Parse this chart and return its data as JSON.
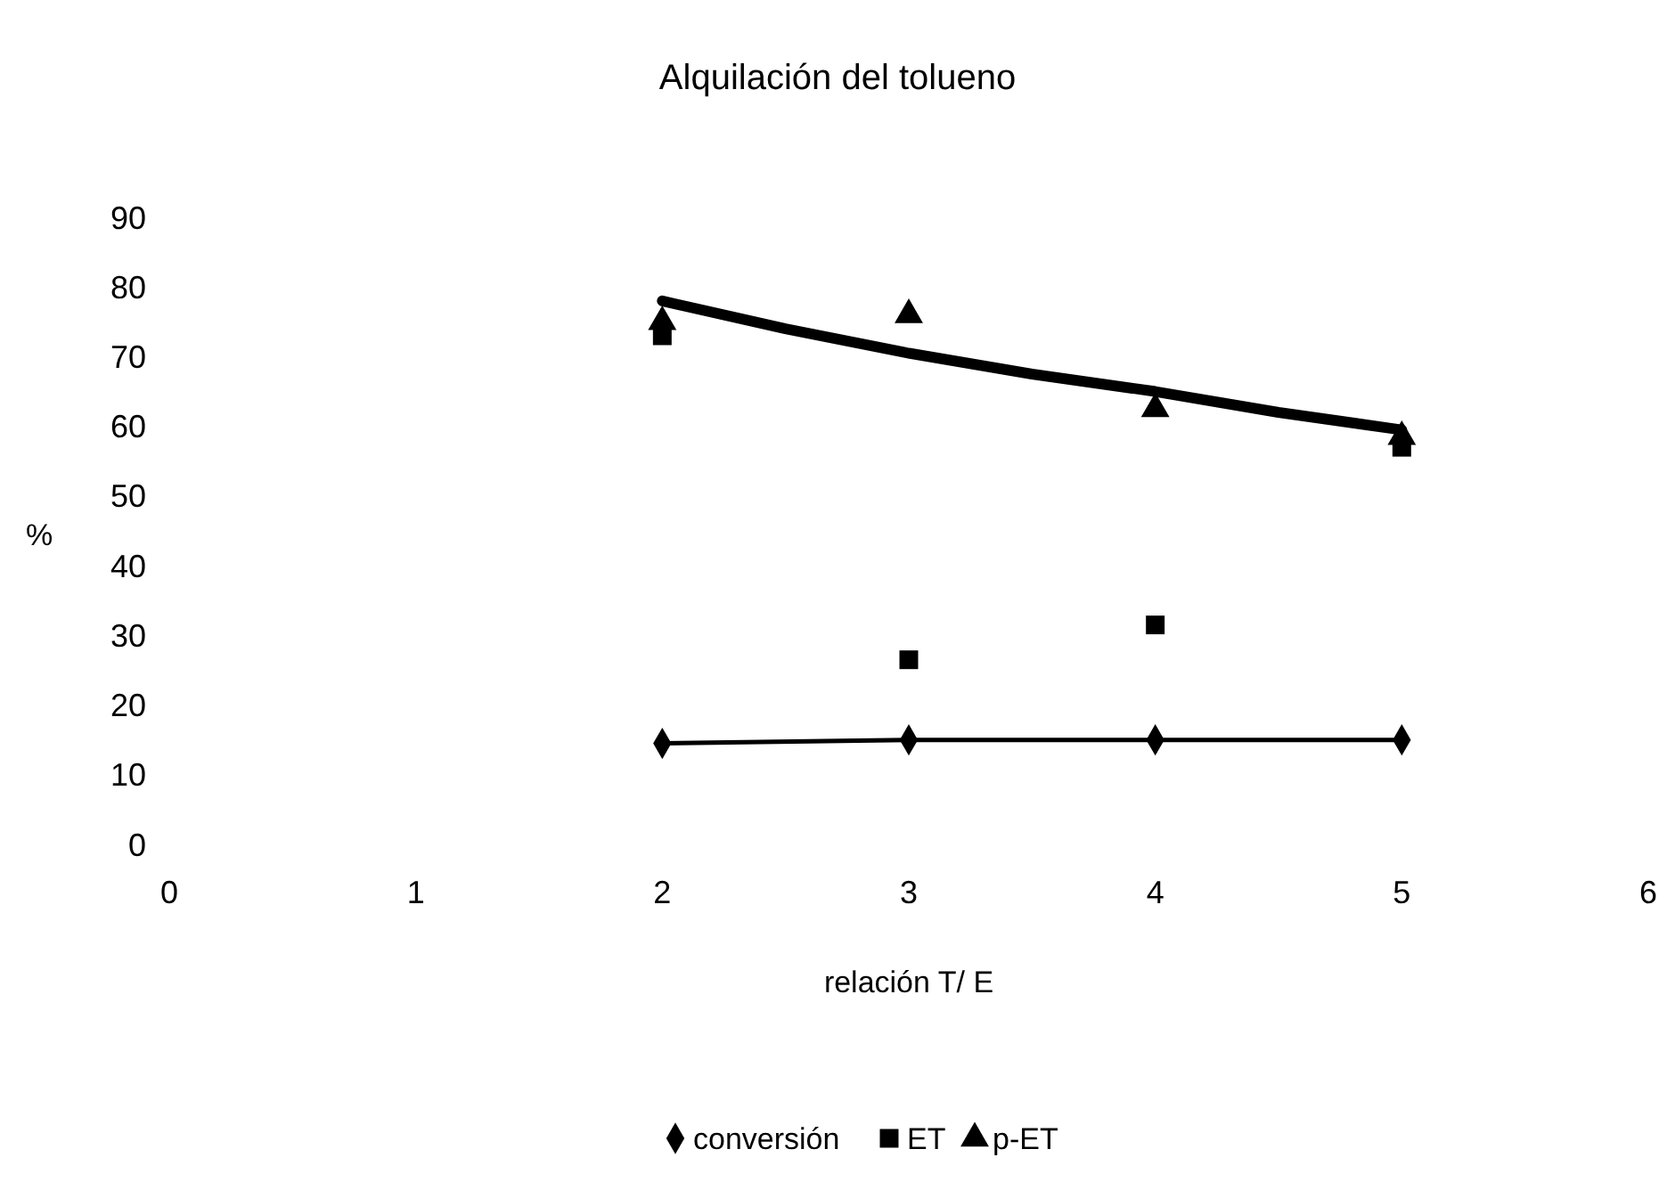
{
  "chart_data": {
    "type": "scatter",
    "title": "Alquilación del tolueno",
    "xlabel": "relación T/ E",
    "ylabel": "%",
    "xlim": [
      0,
      6
    ],
    "xticks": [
      0,
      1,
      2,
      3,
      4,
      5,
      6
    ],
    "ylim": [
      0,
      90
    ],
    "yticks": [
      0,
      10,
      20,
      30,
      40,
      50,
      60,
      70,
      80,
      90
    ],
    "grid": false,
    "legend": "bottom",
    "series": [
      {
        "name": "conversión",
        "type": "line",
        "marker": "diamond",
        "color": "#000000",
        "x": [
          2,
          3,
          4,
          5
        ],
        "values": [
          14.5,
          15,
          15,
          15
        ]
      },
      {
        "name": "ET",
        "marker": "square",
        "color": "#000000",
        "x": [
          2,
          3,
          4,
          5
        ],
        "values": [
          73,
          26.5,
          31.5,
          57
        ]
      },
      {
        "name": "p-ET",
        "marker": "triangle",
        "color": "#000000",
        "x": [
          2,
          3,
          4,
          5
        ],
        "values": [
          75,
          76,
          62.5,
          58.5
        ]
      },
      {
        "type": "line",
        "marker": "none",
        "color": "#000000",
        "x": [
          2,
          2.5,
          3,
          3.5,
          4,
          4.5,
          5
        ],
        "values": [
          78,
          74,
          70.5,
          67.5,
          65,
          62,
          59.5
        ]
      }
    ]
  }
}
